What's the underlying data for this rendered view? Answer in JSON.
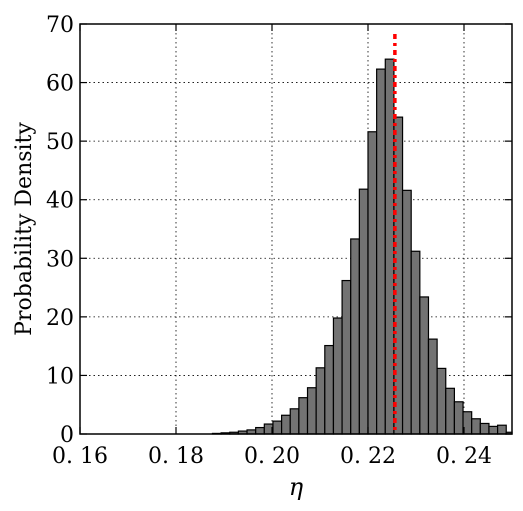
{
  "chart_data": {
    "type": "bar",
    "title": "",
    "xlabel": "η",
    "ylabel": "Probability Density",
    "xlim": [
      0.16,
      0.25
    ],
    "ylim": [
      0,
      70
    ],
    "grid": true,
    "xticks": [
      0.16,
      0.18,
      0.2,
      0.22,
      0.24
    ],
    "xtick_labels": [
      "0. 16",
      "0. 18",
      "0. 20",
      "0. 22",
      "0. 24"
    ],
    "yticks": [
      0,
      10,
      20,
      30,
      40,
      50,
      60,
      70
    ],
    "ytick_labels": [
      "0",
      "10",
      "20",
      "30",
      "40",
      "50",
      "60",
      "70"
    ],
    "bin_width": 0.0018,
    "bins_start": [
      0.1876,
      0.1894,
      0.1912,
      0.193,
      0.1948,
      0.1966,
      0.1984,
      0.2002,
      0.202,
      0.2038,
      0.2056,
      0.2074,
      0.2092,
      0.211,
      0.2128,
      0.2146,
      0.2164,
      0.2182,
      0.22,
      0.2218,
      0.2236,
      0.2254,
      0.2272,
      0.229,
      0.2308,
      0.2326,
      0.2344,
      0.2362,
      0.238,
      0.2398,
      0.2416,
      0.2434,
      0.2452,
      0.247,
      0.2488
    ],
    "values": [
      0.1,
      0.2,
      0.3,
      0.5,
      0.7,
      1.1,
      1.7,
      2.2,
      3.2,
      4.3,
      6.2,
      7.9,
      11.3,
      15.1,
      19.8,
      26.2,
      33.3,
      41.8,
      51.6,
      62.3,
      64.0,
      54.1,
      41.6,
      31.2,
      23.4,
      16.2,
      11.2,
      7.8,
      5.5,
      3.8,
      2.6,
      1.8,
      1.3,
      1.5,
      0.3
    ],
    "bar_color": "#737373",
    "bar_edge_color": "#000000",
    "reference_line": {
      "x": 0.2256,
      "color": "#ff0000",
      "style": "dash-dot"
    }
  }
}
